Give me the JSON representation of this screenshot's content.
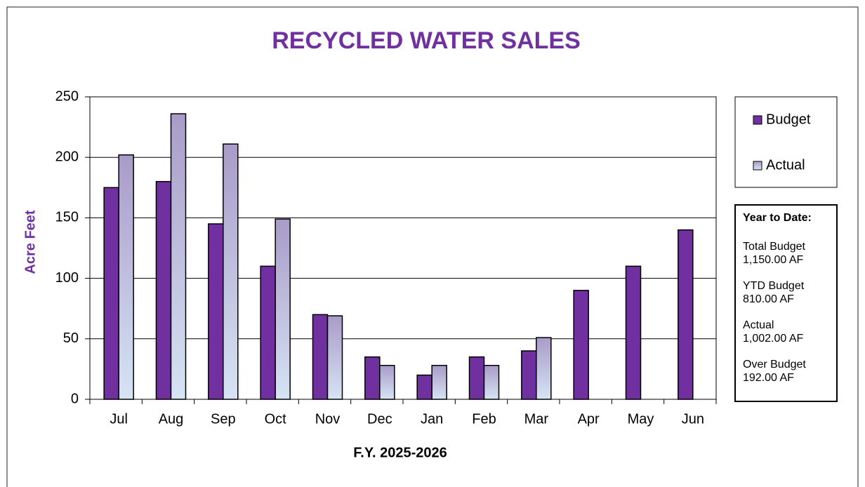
{
  "chart_data": {
    "type": "bar",
    "title": "RECYCLED WATER SALES",
    "x_label": "F.Y. 2025-2026",
    "y_label": "Acre Feet",
    "categories": [
      "Jul",
      "Aug",
      "Sep",
      "Oct",
      "Nov",
      "Dec",
      "Jan",
      "Feb",
      "Mar",
      "Apr",
      "May",
      "Jun"
    ],
    "series": [
      {
        "name": "Budget",
        "color": "#7030a0",
        "values": [
          175,
          180,
          145,
          110,
          70,
          35,
          20,
          35,
          40,
          90,
          110,
          140
        ]
      },
      {
        "name": "Actual",
        "color": "#a99bc9",
        "values": [
          202,
          236,
          211,
          149,
          69,
          28,
          28,
          28,
          51,
          null,
          null,
          null
        ]
      }
    ],
    "ylim": [
      0,
      250
    ],
    "yticks": [
      0,
      50,
      100,
      150,
      200,
      250
    ],
    "grid": true,
    "legend": "right",
    "summary": {
      "title": "Year to Date:",
      "items": [
        {
          "label": "Total Budget",
          "value": "1,150.00 AF"
        },
        {
          "label": "YTD Budget",
          "value": "810.00 AF"
        },
        {
          "label": "Actual",
          "value": "1,002.00 AF"
        },
        {
          "label": "Over Budget",
          "value": "192.00 AF"
        }
      ]
    }
  }
}
